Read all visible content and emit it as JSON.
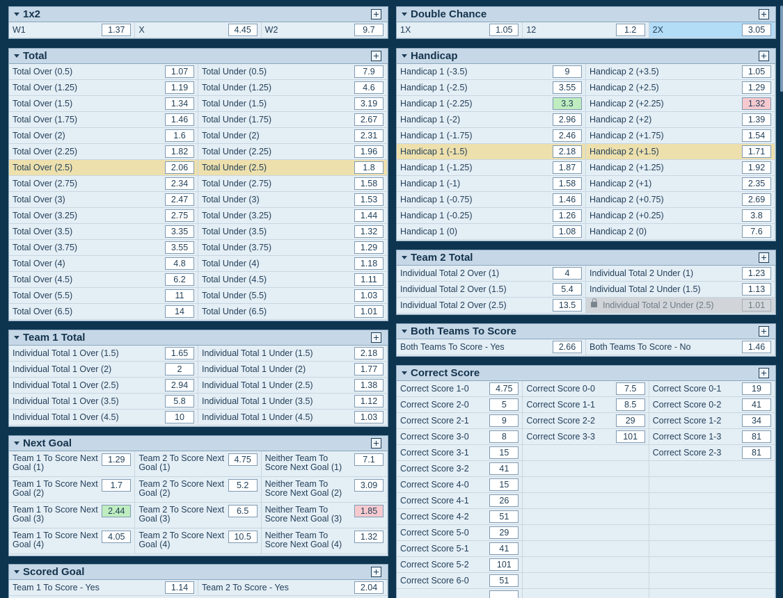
{
  "markets": {
    "m1x2": {
      "title": "1x2",
      "rows": [
        {
          "l": "W1",
          "o": "1.37"
        },
        {
          "l": "X",
          "o": "4.45"
        },
        {
          "l": "W2",
          "o": "9.7"
        }
      ]
    },
    "total": {
      "title": "Total",
      "rows": [
        {
          "l": "Total Over (0.5)",
          "o": "1.07"
        },
        {
          "l": "Total Under (0.5)",
          "o": "7.9"
        },
        {
          "l": "Total Over (1.25)",
          "o": "1.19"
        },
        {
          "l": "Total Under (1.25)",
          "o": "4.6"
        },
        {
          "l": "Total Over (1.5)",
          "o": "1.34"
        },
        {
          "l": "Total Under (1.5)",
          "o": "3.19"
        },
        {
          "l": "Total Over (1.75)",
          "o": "1.46"
        },
        {
          "l": "Total Under (1.75)",
          "o": "2.67"
        },
        {
          "l": "Total Over (2)",
          "o": "1.6"
        },
        {
          "l": "Total Under (2)",
          "o": "2.31"
        },
        {
          "l": "Total Over (2.25)",
          "o": "1.82"
        },
        {
          "l": "Total Under (2.25)",
          "o": "1.96"
        },
        {
          "l": "Total Over (2.5)",
          "o": "2.06"
        },
        {
          "l": "Total Under (2.5)",
          "o": "1.8"
        },
        {
          "l": "Total Over (2.75)",
          "o": "2.34"
        },
        {
          "l": "Total Under (2.75)",
          "o": "1.58"
        },
        {
          "l": "Total Over (3)",
          "o": "2.47"
        },
        {
          "l": "Total Under (3)",
          "o": "1.53"
        },
        {
          "l": "Total Over (3.25)",
          "o": "2.75"
        },
        {
          "l": "Total Under (3.25)",
          "o": "1.44"
        },
        {
          "l": "Total Over (3.5)",
          "o": "3.35"
        },
        {
          "l": "Total Under (3.5)",
          "o": "1.32"
        },
        {
          "l": "Total Over (3.75)",
          "o": "3.55"
        },
        {
          "l": "Total Under (3.75)",
          "o": "1.29"
        },
        {
          "l": "Total Over (4)",
          "o": "4.8"
        },
        {
          "l": "Total Under (4)",
          "o": "1.18"
        },
        {
          "l": "Total Over (4.5)",
          "o": "6.2"
        },
        {
          "l": "Total Under (4.5)",
          "o": "1.11"
        },
        {
          "l": "Total Over (5.5)",
          "o": "11"
        },
        {
          "l": "Total Under (5.5)",
          "o": "1.03"
        },
        {
          "l": "Total Over (6.5)",
          "o": "14"
        },
        {
          "l": "Total Under (6.5)",
          "o": "1.01"
        }
      ]
    },
    "team1": {
      "title": "Team 1 Total",
      "rows": [
        {
          "l": "Individual Total 1 Over (1.5)",
          "o": "1.65"
        },
        {
          "l": "Individual Total 1 Under (1.5)",
          "o": "2.18"
        },
        {
          "l": "Individual Total 1 Over (2)",
          "o": "2"
        },
        {
          "l": "Individual Total 1 Under (2)",
          "o": "1.77"
        },
        {
          "l": "Individual Total 1 Over (2.5)",
          "o": "2.94"
        },
        {
          "l": "Individual Total 1 Under (2.5)",
          "o": "1.38"
        },
        {
          "l": "Individual Total 1 Over (3.5)",
          "o": "5.8"
        },
        {
          "l": "Individual Total 1 Under (3.5)",
          "o": "1.12"
        },
        {
          "l": "Individual Total 1 Over (4.5)",
          "o": "10"
        },
        {
          "l": "Individual Total 1 Under (4.5)",
          "o": "1.03"
        }
      ]
    },
    "nextgoal": {
      "title": "Next Goal",
      "rows": [
        {
          "l": "Team 1 To Score Next Goal (1)",
          "o": "1.29"
        },
        {
          "l": "Team 2 To Score Next Goal (1)",
          "o": "4.75"
        },
        {
          "l": "Neither Team To Score Next Goal (1)",
          "o": "7.1"
        },
        {
          "l": "Team 1 To Score Next Goal (2)",
          "o": "1.7"
        },
        {
          "l": "Team 2 To Score Next Goal (2)",
          "o": "5.2"
        },
        {
          "l": "Neither Team To Score Next Goal (2)",
          "o": "3.09"
        },
        {
          "l": "Team 1 To Score Next Goal (3)",
          "o": "2.44"
        },
        {
          "l": "Team 2 To Score Next Goal (3)",
          "o": "6.5"
        },
        {
          "l": "Neither Team To Score Next Goal (3)",
          "o": "1.85"
        },
        {
          "l": "Team 1 To Score Next Goal (4)",
          "o": "4.05"
        },
        {
          "l": "Team 2 To Score Next Goal (4)",
          "o": "10.5"
        },
        {
          "l": "Neither Team To Score Next Goal (4)",
          "o": "1.32"
        }
      ]
    },
    "scored": {
      "title": "Scored Goal",
      "rows": [
        {
          "l": "Team 1 To Score - Yes",
          "o": "1.14"
        },
        {
          "l": "Team 2 To Score - Yes",
          "o": "2.04"
        }
      ]
    },
    "dbl": {
      "title": "Double Chance",
      "rows": [
        {
          "l": "1X",
          "o": "1.05"
        },
        {
          "l": "12",
          "o": "1.2"
        },
        {
          "l": "2X",
          "o": "3.05"
        }
      ]
    },
    "hcp": {
      "title": "Handicap",
      "rows": [
        {
          "l": "Handicap 1 (-3.5)",
          "o": "9"
        },
        {
          "l": "Handicap 2 (+3.5)",
          "o": "1.05"
        },
        {
          "l": "Handicap 1 (-2.5)",
          "o": "3.55"
        },
        {
          "l": "Handicap 2 (+2.5)",
          "o": "1.29"
        },
        {
          "l": "Handicap 1 (-2.25)",
          "o": "3.3"
        },
        {
          "l": "Handicap 2 (+2.25)",
          "o": "1.32"
        },
        {
          "l": "Handicap 1 (-2)",
          "o": "2.96"
        },
        {
          "l": "Handicap 2 (+2)",
          "o": "1.39"
        },
        {
          "l": "Handicap 1 (-1.75)",
          "o": "2.46"
        },
        {
          "l": "Handicap 2 (+1.75)",
          "o": "1.54"
        },
        {
          "l": "Handicap 1 (-1.5)",
          "o": "2.18"
        },
        {
          "l": "Handicap 2 (+1.5)",
          "o": "1.71"
        },
        {
          "l": "Handicap 1 (-1.25)",
          "o": "1.87"
        },
        {
          "l": "Handicap 2 (+1.25)",
          "o": "1.92"
        },
        {
          "l": "Handicap 1 (-1)",
          "o": "1.58"
        },
        {
          "l": "Handicap 2 (+1)",
          "o": "2.35"
        },
        {
          "l": "Handicap 1 (-0.75)",
          "o": "1.46"
        },
        {
          "l": "Handicap 2 (+0.75)",
          "o": "2.69"
        },
        {
          "l": "Handicap 1 (-0.25)",
          "o": "1.26"
        },
        {
          "l": "Handicap 2 (+0.25)",
          "o": "3.8"
        },
        {
          "l": "Handicap 1 (0)",
          "o": "1.08"
        },
        {
          "l": "Handicap 2 (0)",
          "o": "7.6"
        }
      ]
    },
    "team2": {
      "title": "Team 2 Total",
      "rows": [
        {
          "l": "Individual Total 2 Over (1)",
          "o": "4"
        },
        {
          "l": "Individual Total 2 Under (1)",
          "o": "1.23"
        },
        {
          "l": "Individual Total 2 Over (1.5)",
          "o": "5.4"
        },
        {
          "l": "Individual Total 2 Under (1.5)",
          "o": "1.13"
        },
        {
          "l": "Individual Total 2 Over (2.5)",
          "o": "13.5"
        },
        {
          "l": "Individual Total 2 Under (2.5)",
          "o": "1.01"
        }
      ]
    },
    "btts": {
      "title": "Both Teams To Score",
      "rows": [
        {
          "l": "Both Teams To Score - Yes",
          "o": "2.66"
        },
        {
          "l": "Both Teams To Score - No",
          "o": "1.46"
        }
      ]
    },
    "cs": {
      "title": "Correct Score",
      "rows": [
        {
          "l": "Correct Score 1-0",
          "o": "4.75"
        },
        {
          "l": "Correct Score 0-0",
          "o": "7.5"
        },
        {
          "l": "Correct Score 0-1",
          "o": "19"
        },
        {
          "l": "Correct Score 2-0",
          "o": "5"
        },
        {
          "l": "Correct Score 1-1",
          "o": "8.5"
        },
        {
          "l": "Correct Score 0-2",
          "o": "41"
        },
        {
          "l": "Correct Score 2-1",
          "o": "9"
        },
        {
          "l": "Correct Score 2-2",
          "o": "29"
        },
        {
          "l": "Correct Score 1-2",
          "o": "34"
        },
        {
          "l": "Correct Score 3-0",
          "o": "8"
        },
        {
          "l": "Correct Score 3-3",
          "o": "101"
        },
        {
          "l": "Correct Score 1-3",
          "o": "81"
        },
        {
          "l": "Correct Score 3-1",
          "o": "15"
        },
        null,
        {
          "l": "Correct Score 2-3",
          "o": "81"
        },
        {
          "l": "Correct Score 3-2",
          "o": "41"
        },
        null,
        null,
        {
          "l": "Correct Score 4-0",
          "o": "15"
        },
        null,
        null,
        {
          "l": "Correct Score 4-1",
          "o": "26"
        },
        null,
        null,
        {
          "l": "Correct Score 4-2",
          "o": "51"
        },
        null,
        null,
        {
          "l": "Correct Score 5-0",
          "o": "29"
        },
        null,
        null,
        {
          "l": "Correct Score 5-1",
          "o": "41"
        },
        null,
        null,
        {
          "l": "Correct Score 5-2",
          "o": "101"
        },
        null,
        null,
        {
          "l": "Correct Score 6-0",
          "o": "51"
        },
        null,
        null,
        {
          "l": "",
          "o": ""
        },
        null,
        null
      ]
    }
  },
  "colors": {
    "header": "#c6d8e7",
    "row": "#e4eef5",
    "highlight": "#ede0ad",
    "selected": "#b3dcf7",
    "odds_up": "#bfedbf",
    "odds_down": "#f6c9cf",
    "locked": "#d1d5d9"
  }
}
